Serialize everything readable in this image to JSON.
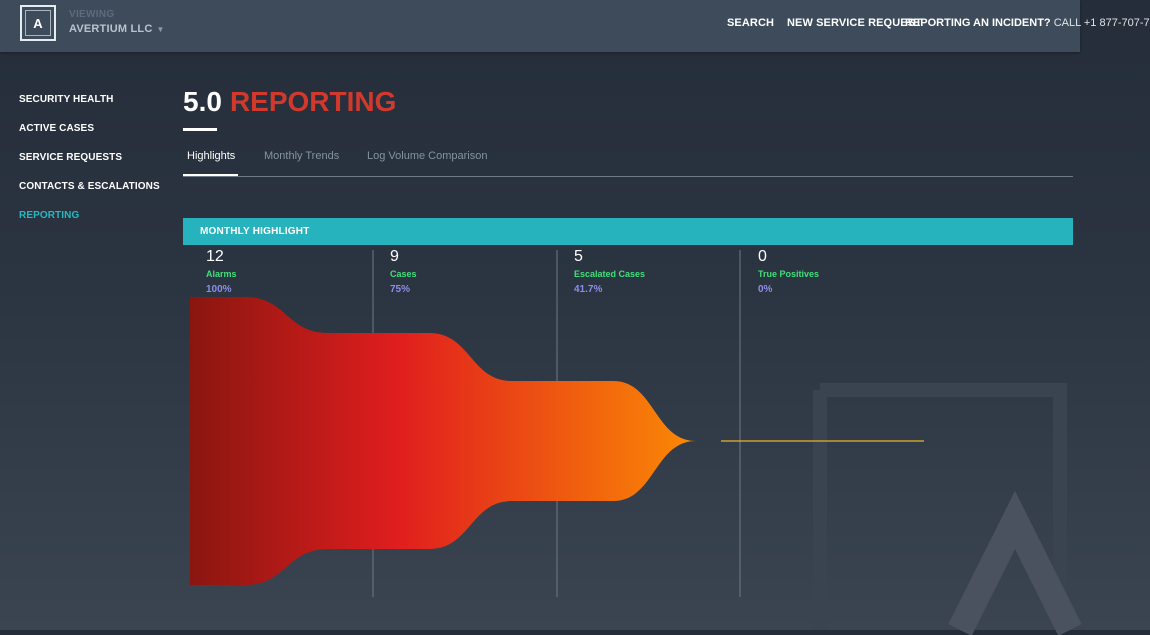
{
  "header": {
    "logo_text": "A",
    "viewing_label": "VIEWING",
    "account_name": "AVERTIUM LLC",
    "nav": {
      "search": "SEARCH",
      "new_service_request": "NEW SERVICE REQUEST",
      "incident_label": "REPORTING AN INCIDENT?",
      "incident_call": "CALL +1 877-707-7"
    }
  },
  "sidebar": {
    "items": [
      {
        "label": "SECURITY HEALTH"
      },
      {
        "label": "ACTIVE CASES"
      },
      {
        "label": "SERVICE REQUESTS"
      },
      {
        "label": "CONTACTS & ESCALATIONS"
      },
      {
        "label": "REPORTING",
        "active": true
      }
    ]
  },
  "page": {
    "title_number": "5.0",
    "title_word": "REPORTING"
  },
  "tabs": [
    {
      "label": "Highlights",
      "active": true
    },
    {
      "label": "Monthly Trends"
    },
    {
      "label": "Log Volume Comparison"
    }
  ],
  "highlight": {
    "banner": "MONTHLY HIGHLIGHT",
    "stages": [
      {
        "value": "12",
        "label": "Alarms",
        "percent": "100%"
      },
      {
        "value": "9",
        "label": "Cases",
        "percent": "75%"
      },
      {
        "value": "5",
        "label": "Escalated Cases",
        "percent": "41.7%"
      },
      {
        "value": "0",
        "label": "True Positives",
        "percent": "0%"
      }
    ]
  },
  "chart_data": {
    "type": "funnel",
    "categories": [
      "Alarms",
      "Cases",
      "Escalated Cases",
      "True Positives"
    ],
    "values": [
      12,
      9,
      5,
      0
    ],
    "percentages": [
      100,
      75,
      41.7,
      0
    ]
  },
  "colors": {
    "accent": "#27b3bd",
    "title_red": "#d0392b",
    "label_green": "#3fe07a",
    "percent_purple": "#8d8ee6",
    "funnel_start": "#8a1610",
    "funnel_mid": "#e01e1e",
    "funnel_end": "#ff9a00",
    "thin_line": "#e8b32a"
  }
}
